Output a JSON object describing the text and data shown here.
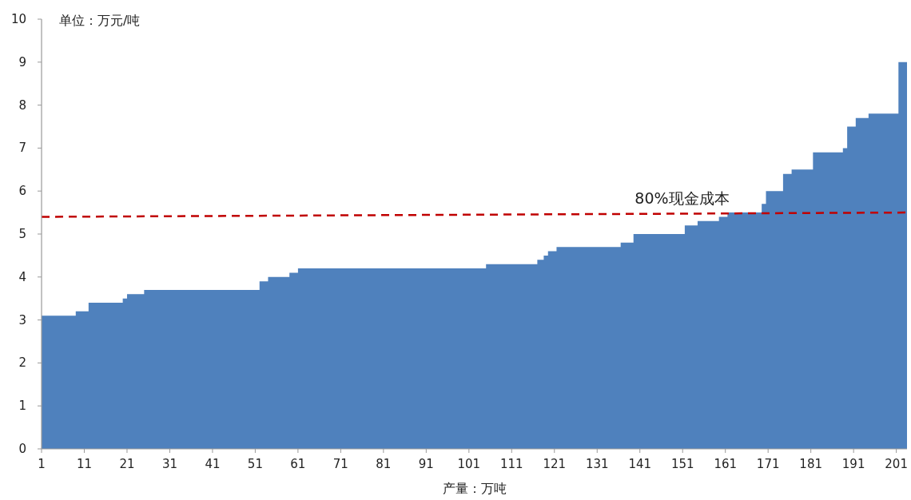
{
  "chart_data": {
    "type": "area",
    "xlabel": "产量：万吨",
    "ylabel": "单位：万元/吨",
    "xlim": [
      1,
      203.5
    ],
    "ylim": [
      0,
      10
    ],
    "xticks": [
      1,
      11,
      21,
      31,
      41,
      51,
      61,
      71,
      81,
      91,
      101,
      111,
      121,
      131,
      141,
      151,
      161,
      171,
      181,
      191,
      201
    ],
    "yticks": [
      0,
      1,
      2,
      3,
      4,
      5,
      6,
      7,
      8,
      9,
      10
    ],
    "series": [
      {
        "color": "#4f81bd",
        "x": [
          1,
          9,
          9,
          12,
          12,
          20,
          20,
          21,
          21,
          25,
          25,
          52,
          52,
          54,
          54,
          59,
          59,
          61,
          61,
          105,
          105,
          117,
          117,
          118.5,
          118.5,
          119.5,
          119.5,
          121.5,
          121.5,
          136.5,
          136.5,
          139.5,
          139.5,
          151.5,
          151.5,
          154.5,
          154.5,
          159.5,
          159.5,
          161.5,
          161.5,
          169.5,
          169.5,
          170.5,
          170.5,
          174.5,
          174.5,
          176.5,
          176.5,
          181.5,
          181.5,
          188.5,
          188.5,
          189.5,
          189.5,
          191.5,
          191.5,
          194.5,
          194.5,
          201.5,
          201.5,
          203.5
        ],
        "values": [
          3.1,
          3.1,
          3.2,
          3.2,
          3.4,
          3.4,
          3.5,
          3.5,
          3.6,
          3.6,
          3.7,
          3.7,
          3.9,
          3.9,
          4.0,
          4.0,
          4.1,
          4.1,
          4.2,
          4.2,
          4.3,
          4.3,
          4.4,
          4.4,
          4.5,
          4.5,
          4.6,
          4.6,
          4.7,
          4.7,
          4.8,
          4.8,
          5.0,
          5.0,
          5.2,
          5.2,
          5.3,
          5.3,
          5.4,
          5.4,
          5.5,
          5.5,
          5.7,
          5.7,
          6.0,
          6.0,
          6.4,
          6.4,
          6.5,
          6.5,
          6.9,
          6.9,
          7.0,
          7.0,
          7.5,
          7.5,
          7.7,
          7.7,
          7.8,
          7.8,
          9.0,
          9.0
        ]
      },
      {
        "type": "line",
        "name": "80%现金成本",
        "color": "#c00000",
        "line_style": "dashed",
        "x": [
          1,
          203.5
        ],
        "values": [
          5.4,
          5.5
        ]
      }
    ]
  }
}
